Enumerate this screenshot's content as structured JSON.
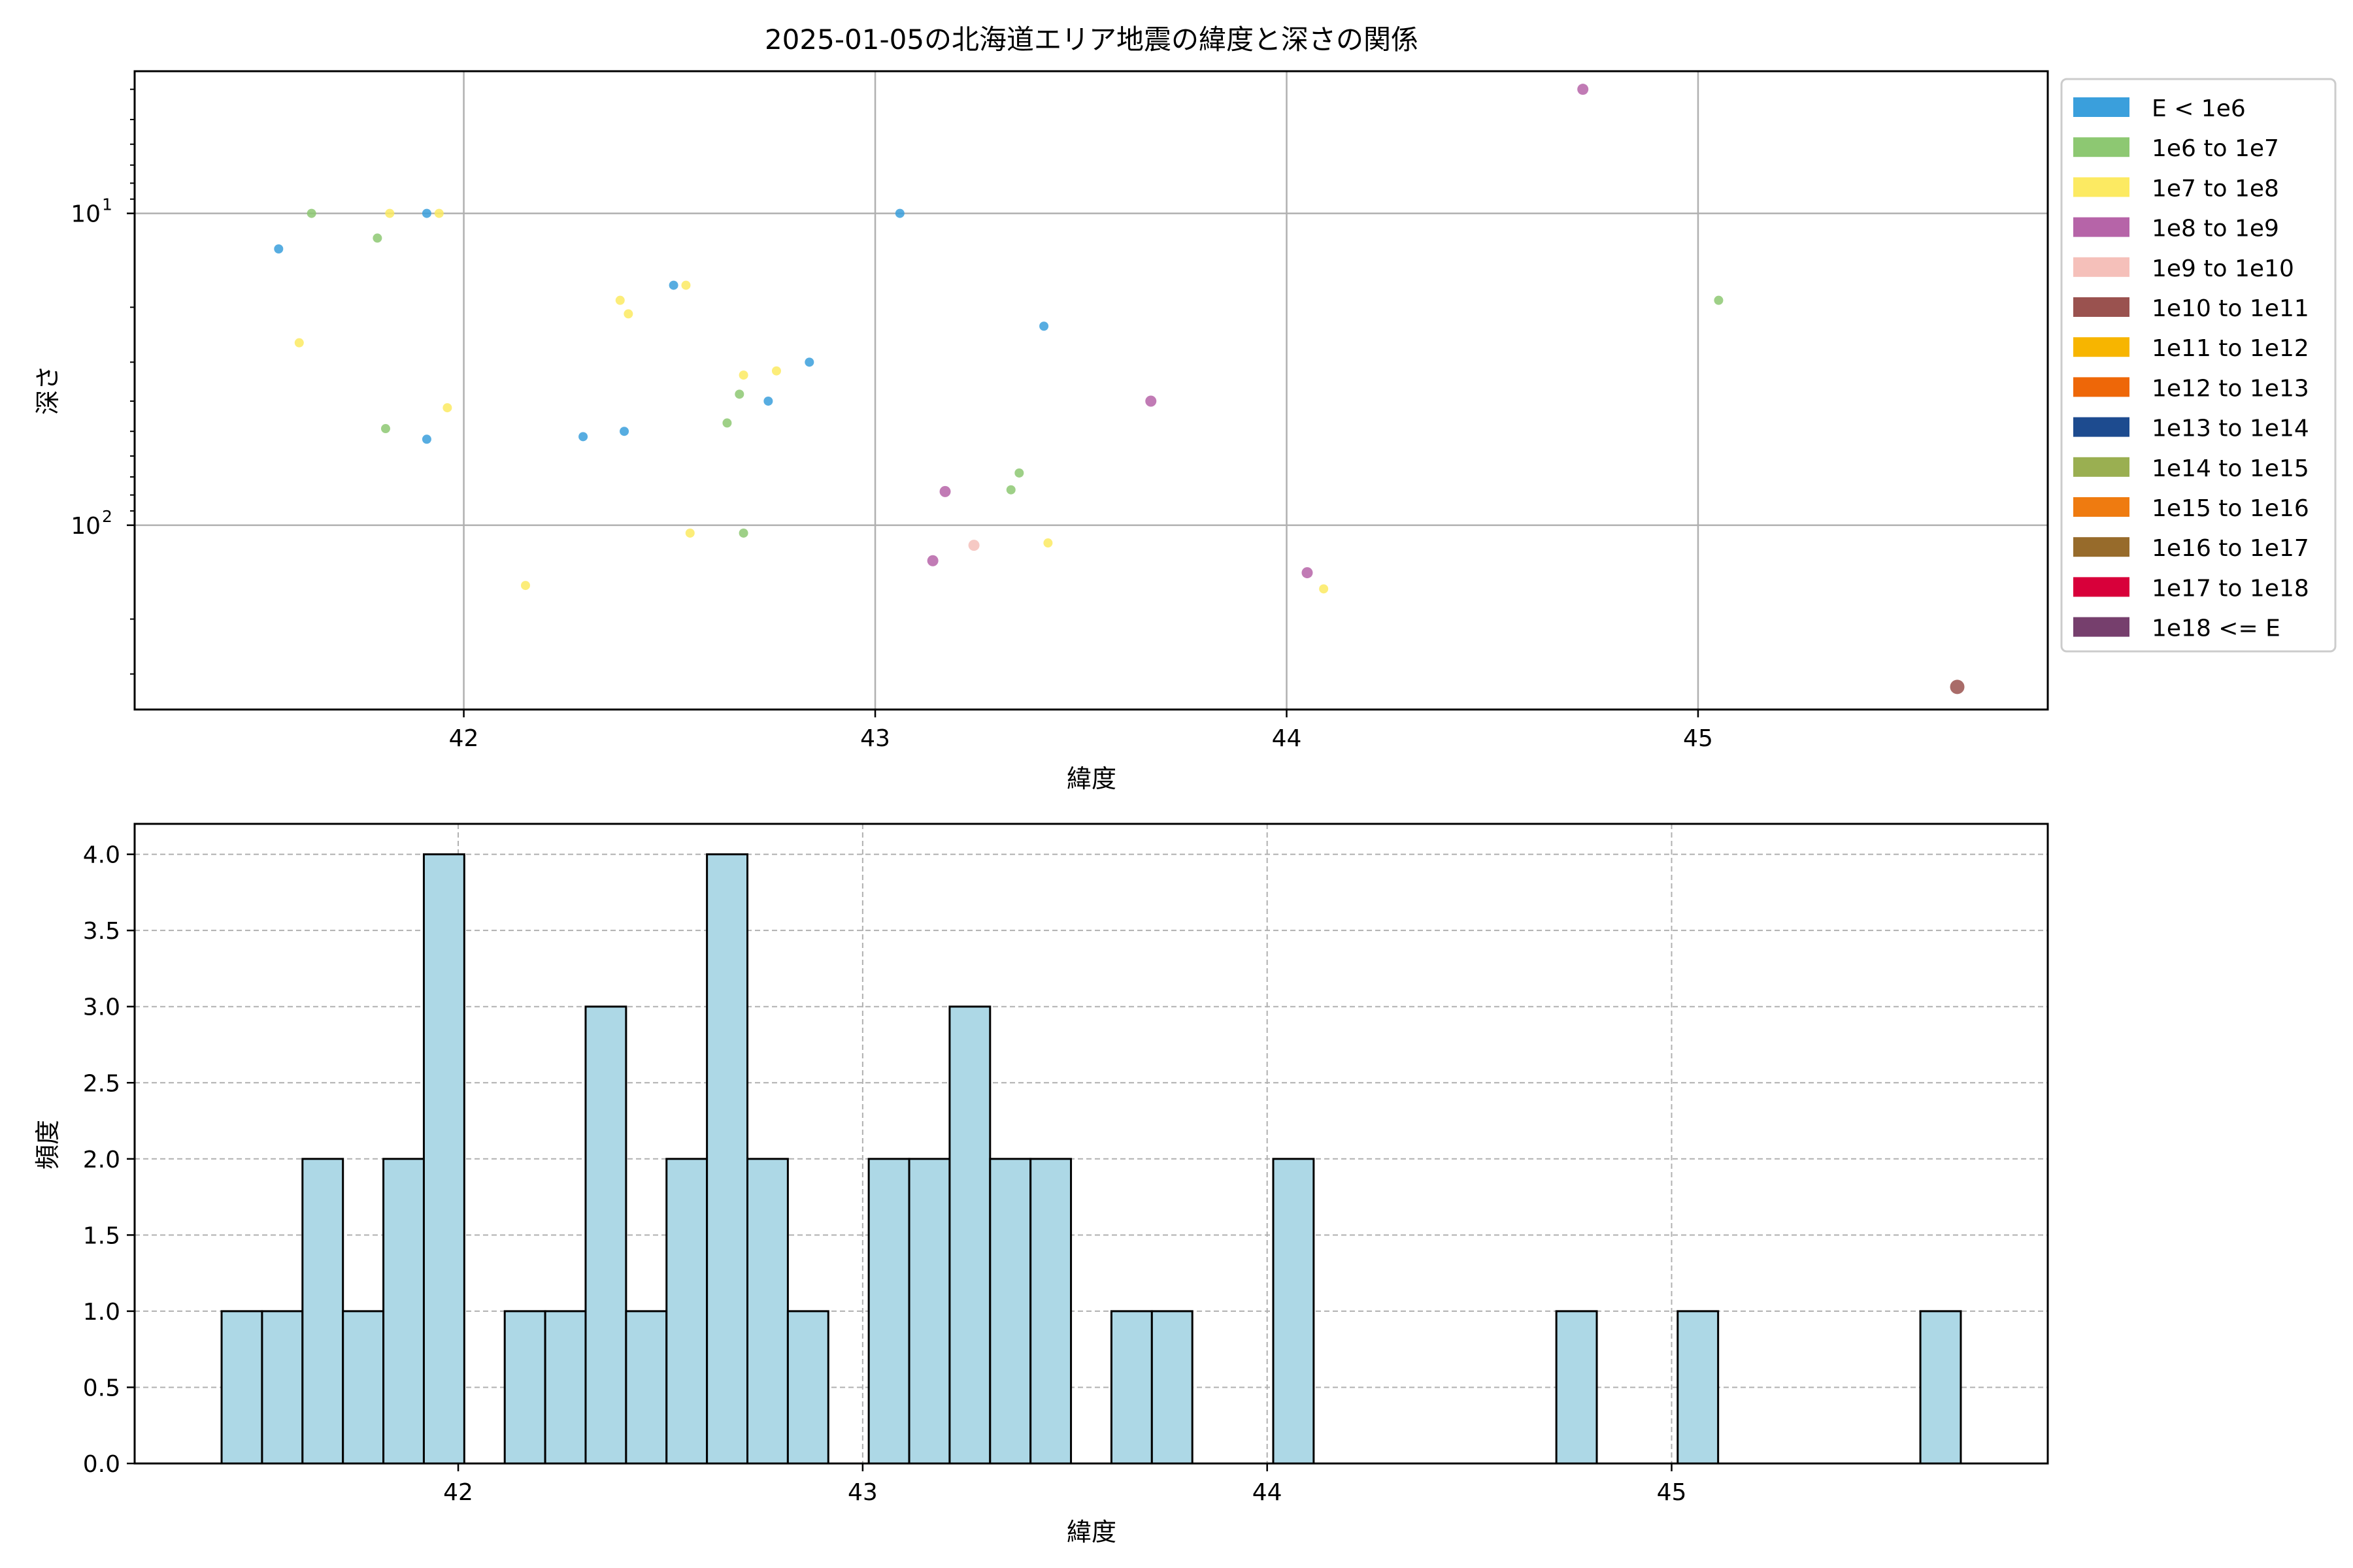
{
  "chart_data": [
    {
      "type": "scatter",
      "title": "2025-01-05の北海道エリア地震の緯度と深さの関係",
      "xlabel": "緯度",
      "ylabel": "深さ",
      "xlim": [
        41.2,
        45.85
      ],
      "ylim": [
        390,
        3.5
      ],
      "y_scale": "log",
      "y_inverted": true,
      "grid": true,
      "x_ticks": [
        {
          "value": 42,
          "label": "42"
        },
        {
          "value": 43,
          "label": "43"
        },
        {
          "value": 44,
          "label": "44"
        },
        {
          "value": 45,
          "label": "45"
        }
      ],
      "y_ticks": [
        {
          "value": 10,
          "base": "10",
          "exp": "1"
        },
        {
          "value": 100,
          "base": "10",
          "exp": "2"
        }
      ],
      "legend": {
        "placement": "outside-right",
        "entries": [
          {
            "label": "E < 1e6",
            "color": "#3a9fdc"
          },
          {
            "label": "1e6 to 1e7",
            "color": "#8dc872"
          },
          {
            "label": "1e7 to 1e8",
            "color": "#fcea62"
          },
          {
            "label": "1e8 to 1e9",
            "color": "#b664a8"
          },
          {
            "label": "1e9 to 1e10",
            "color": "#f5c0ba"
          },
          {
            "label": "1e10 to 1e11",
            "color": "#9a524f"
          },
          {
            "label": "1e11 to 1e12",
            "color": "#f7b500"
          },
          {
            "label": "1e12 to 1e13",
            "color": "#ee6708"
          },
          {
            "label": "1e13 to 1e14",
            "color": "#1d4b8f"
          },
          {
            "label": "1e14 to 1e15",
            "color": "#9aaf51"
          },
          {
            "label": "1e15 to 1e16",
            "color": "#ef7b10"
          },
          {
            "label": "1e16 to 1e17",
            "color": "#976b2b"
          },
          {
            "label": "1e17 to 1e18",
            "color": "#d8003a"
          },
          {
            "label": "1e18 <= E",
            "color": "#763f6d"
          }
        ]
      },
      "points": [
        {
          "x": 41.55,
          "y": 13,
          "cls": 0
        },
        {
          "x": 41.91,
          "y": 10,
          "cls": 0
        },
        {
          "x": 41.91,
          "y": 53,
          "cls": 0
        },
        {
          "x": 42.29,
          "y": 52,
          "cls": 0
        },
        {
          "x": 42.39,
          "y": 50,
          "cls": 0
        },
        {
          "x": 42.51,
          "y": 17,
          "cls": 0
        },
        {
          "x": 42.74,
          "y": 40,
          "cls": 0
        },
        {
          "x": 42.84,
          "y": 30,
          "cls": 0
        },
        {
          "x": 43.06,
          "y": 10,
          "cls": 0
        },
        {
          "x": 43.41,
          "y": 23,
          "cls": 0
        },
        {
          "x": 41.63,
          "y": 10,
          "cls": 1
        },
        {
          "x": 41.79,
          "y": 12,
          "cls": 1
        },
        {
          "x": 41.81,
          "y": 49,
          "cls": 1
        },
        {
          "x": 42.64,
          "y": 47,
          "cls": 1
        },
        {
          "x": 42.67,
          "y": 38,
          "cls": 1
        },
        {
          "x": 42.68,
          "y": 106,
          "cls": 1
        },
        {
          "x": 43.33,
          "y": 77,
          "cls": 1
        },
        {
          "x": 43.35,
          "y": 68,
          "cls": 1
        },
        {
          "x": 45.05,
          "y": 19,
          "cls": 1
        },
        {
          "x": 41.6,
          "y": 26,
          "cls": 2
        },
        {
          "x": 41.82,
          "y": 10,
          "cls": 2
        },
        {
          "x": 41.94,
          "y": 10,
          "cls": 2
        },
        {
          "x": 41.96,
          "y": 42,
          "cls": 2
        },
        {
          "x": 42.15,
          "y": 156,
          "cls": 2
        },
        {
          "x": 42.38,
          "y": 19,
          "cls": 2
        },
        {
          "x": 42.4,
          "y": 21,
          "cls": 2
        },
        {
          "x": 42.54,
          "y": 17,
          "cls": 2
        },
        {
          "x": 42.55,
          "y": 106,
          "cls": 2
        },
        {
          "x": 42.68,
          "y": 33,
          "cls": 2
        },
        {
          "x": 42.76,
          "y": 32,
          "cls": 2
        },
        {
          "x": 43.42,
          "y": 114,
          "cls": 2
        },
        {
          "x": 44.09,
          "y": 160,
          "cls": 2
        },
        {
          "x": 43.14,
          "y": 130,
          "cls": 3
        },
        {
          "x": 43.17,
          "y": 78,
          "cls": 3
        },
        {
          "x": 43.67,
          "y": 40,
          "cls": 3
        },
        {
          "x": 44.05,
          "y": 142,
          "cls": 3
        },
        {
          "x": 44.72,
          "y": 4,
          "cls": 3
        },
        {
          "x": 43.24,
          "y": 116,
          "cls": 4
        },
        {
          "x": 45.63,
          "y": 330,
          "cls": 5
        }
      ]
    },
    {
      "type": "bar",
      "subtype": "histogram",
      "xlabel": "緯度",
      "ylabel": "頻度",
      "xlim": [
        41.2,
        45.93
      ],
      "ylim": [
        0,
        4.2
      ],
      "grid": true,
      "bar_color": "#add8e6",
      "x_ticks": [
        {
          "value": 42,
          "label": "42"
        },
        {
          "value": 43,
          "label": "43"
        },
        {
          "value": 44,
          "label": "44"
        },
        {
          "value": 45,
          "label": "45"
        }
      ],
      "y_ticks": [
        "0.0",
        "0.5",
        "1.0",
        "1.5",
        "2.0",
        "2.5",
        "3.0",
        "3.5",
        "4.0"
      ],
      "bin_start": 41.415,
      "bin_width": 0.1,
      "counts": [
        1,
        1,
        2,
        1,
        2,
        4,
        0,
        1,
        1,
        3,
        1,
        2,
        4,
        2,
        1,
        0,
        2,
        2,
        3,
        2,
        2,
        0,
        1,
        1,
        0,
        0,
        2,
        0,
        0,
        0,
        0,
        0,
        0,
        1,
        0,
        0,
        1,
        0,
        0,
        0,
        0,
        0,
        1
      ]
    }
  ]
}
